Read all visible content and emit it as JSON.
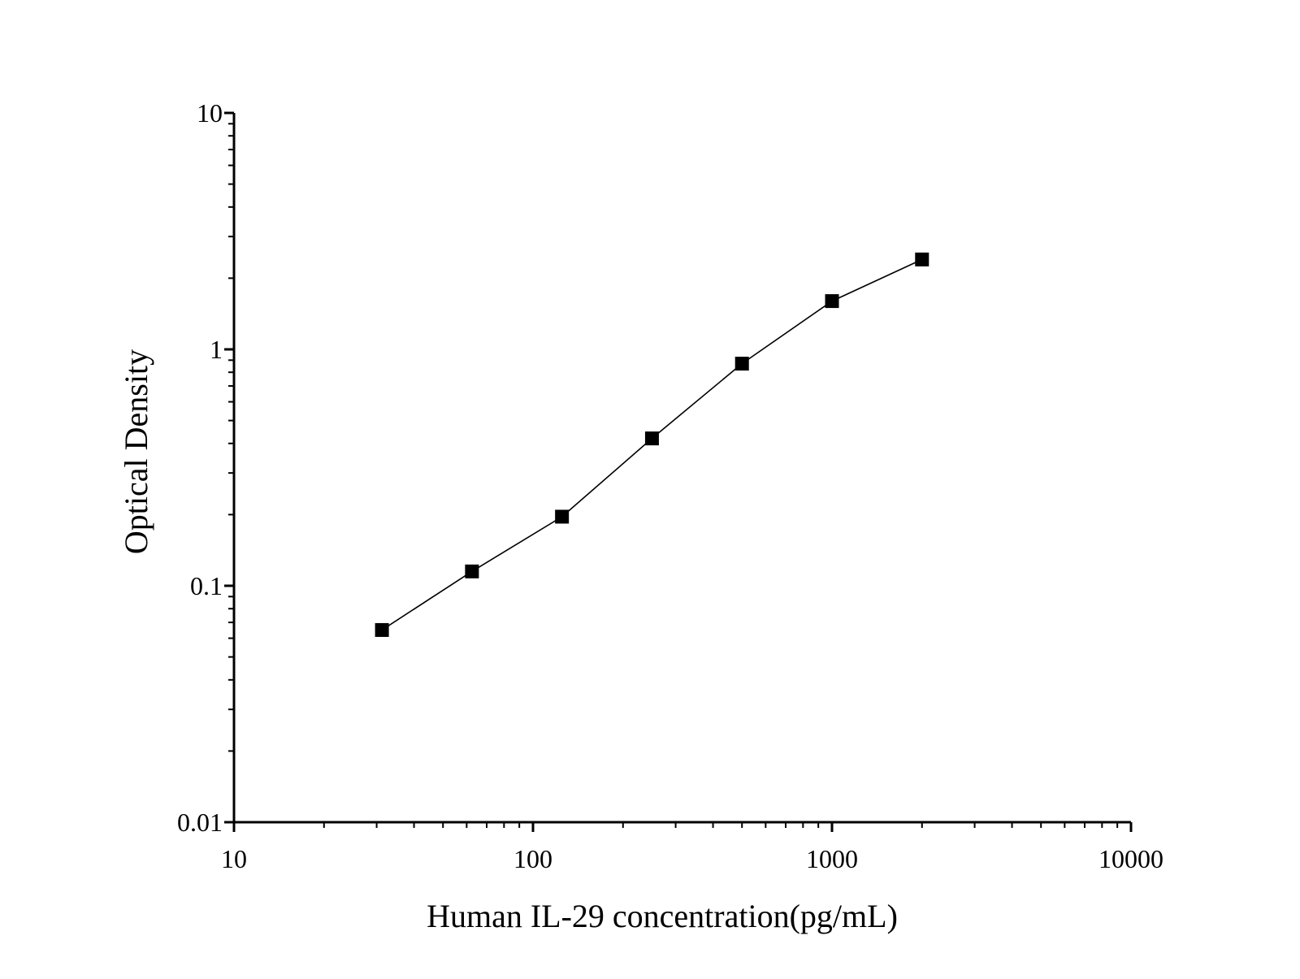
{
  "chart_data": {
    "type": "line",
    "x_scale": "log",
    "y_scale": "log",
    "xlabel": "Human IL-29 concentration(pg/mL)",
    "ylabel": "Optical Density",
    "xlim": [
      10,
      10000
    ],
    "ylim": [
      0.01,
      10
    ],
    "x_ticks": [
      "10",
      "100",
      "1000",
      "10000"
    ],
    "y_ticks": [
      "0.01",
      "0.1",
      "1",
      "10"
    ],
    "grid": false,
    "legend": "none",
    "marker": "square",
    "color": "#000000",
    "series": [
      {
        "x": [
          31.25,
          62.5,
          125,
          250,
          500,
          1000,
          2000
        ],
        "y": [
          0.065,
          0.115,
          0.196,
          0.42,
          0.87,
          1.6,
          2.4
        ]
      }
    ]
  }
}
